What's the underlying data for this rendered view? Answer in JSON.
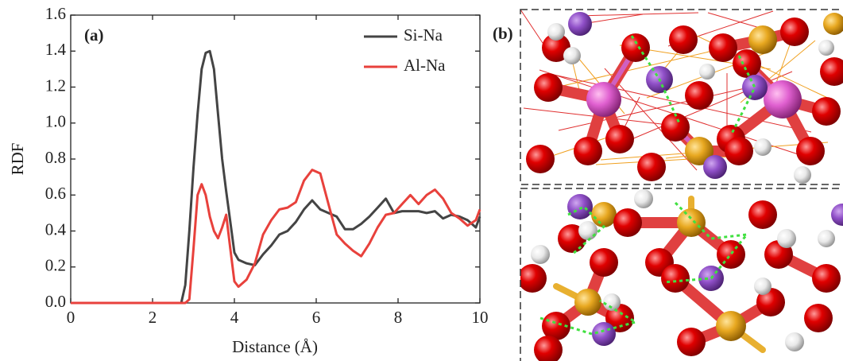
{
  "chart_data": {
    "type": "line",
    "xlabel": "Distance (Å)",
    "ylabel": "RDF",
    "annotations": [
      "(a)"
    ],
    "x": [
      0,
      2.7,
      2.8,
      2.9,
      3.0,
      3.1,
      3.2,
      3.3,
      3.4,
      3.5,
      3.6,
      3.7,
      3.8,
      3.9,
      4.0,
      4.1,
      4.3,
      4.5,
      4.7,
      4.9,
      5.1,
      5.3,
      5.5,
      5.7,
      5.9,
      6.1,
      6.3,
      6.5,
      6.7,
      6.9,
      7.1,
      7.3,
      7.5,
      7.7,
      7.9,
      8.1,
      8.3,
      8.5,
      8.7,
      8.9,
      9.1,
      9.3,
      9.5,
      9.7,
      9.9,
      10
    ],
    "series": [
      {
        "name": "Si-Na",
        "color": "#444444",
        "values": [
          0,
          0,
          0.1,
          0.4,
          0.75,
          1.05,
          1.3,
          1.39,
          1.4,
          1.3,
          1.05,
          0.8,
          0.62,
          0.45,
          0.28,
          0.24,
          0.22,
          0.21,
          0.27,
          0.32,
          0.38,
          0.4,
          0.45,
          0.52,
          0.57,
          0.52,
          0.5,
          0.48,
          0.41,
          0.41,
          0.44,
          0.48,
          0.53,
          0.58,
          0.5,
          0.51,
          0.51,
          0.51,
          0.5,
          0.51,
          0.47,
          0.49,
          0.48,
          0.46,
          0.42,
          0.48
        ]
      },
      {
        "name": "Al-Na",
        "color": "#e8413c",
        "values": [
          0,
          0,
          0,
          0.02,
          0.3,
          0.6,
          0.66,
          0.6,
          0.48,
          0.4,
          0.36,
          0.42,
          0.49,
          0.3,
          0.12,
          0.09,
          0.13,
          0.22,
          0.38,
          0.46,
          0.52,
          0.53,
          0.56,
          0.68,
          0.74,
          0.72,
          0.55,
          0.38,
          0.33,
          0.29,
          0.26,
          0.33,
          0.42,
          0.49,
          0.5,
          0.55,
          0.6,
          0.55,
          0.6,
          0.63,
          0.58,
          0.5,
          0.47,
          0.43,
          0.46,
          0.52
        ]
      }
    ],
    "xlim": [
      0,
      10
    ],
    "xticks": [
      0,
      2,
      4,
      6,
      8,
      10
    ],
    "ylim": [
      0,
      1.6
    ],
    "yticks": [
      {
        "value": 0,
        "label": "0.0"
      },
      {
        "value": 0.2,
        "label": "0.2"
      },
      {
        "value": 0.4,
        "label": "0.4"
      },
      {
        "value": 0.6,
        "label": "0.6"
      },
      {
        "value": 0.8,
        "label": "0.8"
      },
      {
        "value": 1.0,
        "label": "1.0"
      },
      {
        "value": 1.2,
        "label": "1.2"
      },
      {
        "value": 1.4,
        "label": "1.4"
      },
      {
        "value": 1.6,
        "label": "1.6"
      }
    ],
    "legend": "upper right",
    "grid": false
  },
  "panel_b": {
    "label": "(b)"
  }
}
